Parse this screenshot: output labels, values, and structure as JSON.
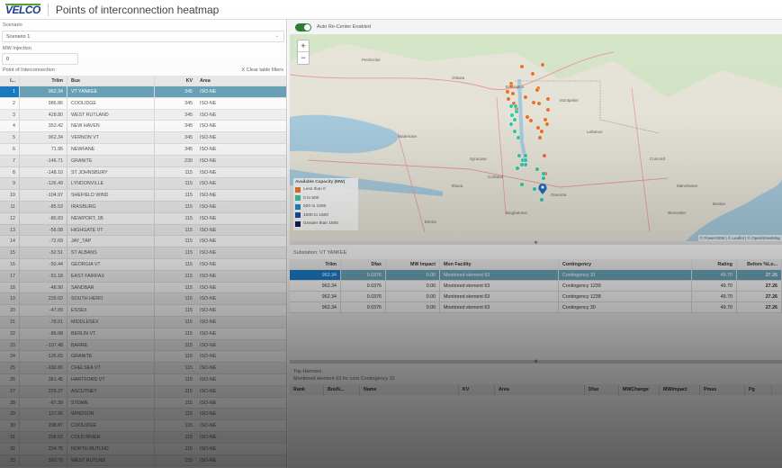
{
  "app": {
    "logo": "VELCO",
    "title": "Points of interconnection heatmap"
  },
  "left": {
    "scenario_label": "Scenario",
    "scenario_value": "Scenario 1",
    "mw_label": "MW Injection",
    "mw_value": "0",
    "poi_label": "Point of Interconnection",
    "clear_filters": "X Clear table filters",
    "columns": [
      "I...",
      "Trlim",
      "Bus",
      "KV",
      "Area"
    ],
    "rows": [
      [
        "1",
        "962.34",
        "VT YANKEE",
        "345",
        "ISO-NE"
      ],
      [
        "2",
        "986.86",
        "COOLIDGE",
        "345",
        "ISO-NE"
      ],
      [
        "3",
        "428.80",
        "WEST RUTLAND",
        "345",
        "ISO-NE"
      ],
      [
        "4",
        "352.42",
        "NEW HAVEN",
        "345",
        "ISO-NE"
      ],
      [
        "5",
        "962.34",
        "VERNON VT",
        "345",
        "ISO-NE"
      ],
      [
        "6",
        "71.95",
        "NEWFANE",
        "345",
        "ISO-NE"
      ],
      [
        "7",
        "-146.71",
        "GRANITE",
        "230",
        "ISO-NE"
      ],
      [
        "8",
        "-148.10",
        "ST JOHNSBURY",
        "115",
        "ISO-NE"
      ],
      [
        "9",
        "-126.49",
        "LYNDONVILLE",
        "115",
        "ISO-NE"
      ],
      [
        "10",
        "-104.97",
        "SHEFIELD WIND",
        "115",
        "ISO-NE"
      ],
      [
        "11",
        "-85.53",
        "IRASBURG",
        "115",
        "ISO-NE"
      ],
      [
        "12",
        "-80.83",
        "NEWPORT, 1B",
        "115",
        "ISO-NE"
      ],
      [
        "13",
        "-56.08",
        "HIGHGATE VT",
        "115",
        "ISO-NE"
      ],
      [
        "14",
        "-72.69",
        "JAY_TAP",
        "115",
        "ISO-NE"
      ],
      [
        "15",
        "-52.51",
        "ST ALBANS",
        "115",
        "ISO-NE"
      ],
      [
        "16",
        "-50.44",
        "GEORGIA VT",
        "115",
        "ISO-NE"
      ],
      [
        "17",
        "-51.18",
        "EAST FAIRFAX",
        "115",
        "ISO-NE"
      ],
      [
        "18",
        "-48.90",
        "SANDBAR",
        "115",
        "ISO-NE"
      ],
      [
        "19",
        "235.02",
        "SOUTH HERO",
        "115",
        "ISO-NE"
      ],
      [
        "20",
        "-47.09",
        "ESSEX",
        "115",
        "ISO-NE"
      ],
      [
        "21",
        "-78.01",
        "MIDDLESEX",
        "115",
        "ISO-NE"
      ],
      [
        "22",
        "-89.08",
        "BERLIN VT",
        "115",
        "ISO-NE"
      ],
      [
        "23",
        "-107.48",
        "BARRE",
        "115",
        "ISO-NE"
      ],
      [
        "24",
        "-126.65",
        "GRANITE",
        "115",
        "ISO-NE"
      ],
      [
        "25",
        "-180.80",
        "CHELSEA VT",
        "115",
        "ISO-NE"
      ],
      [
        "26",
        "361.45",
        "HARTFORD VT",
        "115",
        "ISO-NE"
      ],
      [
        "27",
        "225.37",
        "ASCUTNEY",
        "115",
        "ISO-NE"
      ],
      [
        "28",
        "-67.39",
        "STOWE",
        "115",
        "ISO-NE"
      ],
      [
        "29",
        "127.06",
        "WINDSOR",
        "115",
        "ISO-NE"
      ],
      [
        "30",
        "298.87",
        "COOLIDGE",
        "115",
        "ISO-NE"
      ],
      [
        "31",
        "208.02",
        "COLD RIVER",
        "115",
        "ISO-NE"
      ],
      [
        "32",
        "224.75",
        "NORTH RUTLND",
        "115",
        "ISO-NE"
      ],
      [
        "33",
        "392.79",
        "WEST RUTLND",
        "115",
        "ISO-NE"
      ]
    ]
  },
  "map": {
    "auto_recenter_label": "Auto Re-Center Enabled",
    "auto_recenter_on": true,
    "zoom_in": "+",
    "zoom_out": "−",
    "attribution": "© PowerGEM | © Leaflet | © OpenStreetMap",
    "legend": {
      "title": "Available Capacity (MW)",
      "items": [
        {
          "label": "Less than 0",
          "color": "#e8772e"
        },
        {
          "label": "0 to 500",
          "color": "#3cc8a8"
        },
        {
          "label": "500 to 1000",
          "color": "#1a8fd0"
        },
        {
          "label": "1000 to 1500",
          "color": "#1b4fa0"
        },
        {
          "label": "Greater than 1500",
          "color": "#0d1f5c"
        }
      ]
    },
    "place_labels": [
      "Pembroke",
      "Ottawa",
      "Watertown",
      "Syracuse",
      "Cortland",
      "Ithaca",
      "Binghamton",
      "Elmira",
      "Oneonta",
      "Montpelier",
      "Burlington",
      "Lebanon",
      "Concord",
      "Manchester",
      "Boston",
      "Worcester"
    ]
  },
  "detail": {
    "substation_label": "Substation: VT YANKEE",
    "columns": [
      "Trlim",
      "Dfax",
      "MW Impact",
      "Mon Facility",
      "Contingency",
      "Rating",
      "Before %Lo..."
    ],
    "rows": [
      [
        "962.34",
        "0.0376",
        "0.00",
        "Monitored element 63",
        "Contingency 31",
        "49.70",
        "27.26"
      ],
      [
        "962.34",
        "0.0376",
        "0.00",
        "Monitored element 63",
        "Contingency 1239",
        "49.70",
        "27.26"
      ],
      [
        "962.34",
        "0.0376",
        "0.00",
        "Monitored element 63",
        "Contingency 1238",
        "49.70",
        "27.26"
      ],
      [
        "962.34",
        "0.0376",
        "0.00",
        "Monitored element 63",
        "Contingency 30",
        "49.70",
        "27.26"
      ]
    ]
  },
  "harmers": {
    "title": "Top Harmers",
    "subtitle": "Monitored element 63 for cont Contingency 31",
    "columns": [
      "Rank",
      "BusN...",
      "Name",
      "KV",
      "Area",
      "Dfax",
      "MWChange",
      "MWImpact",
      "Pmax",
      "Pg"
    ]
  }
}
